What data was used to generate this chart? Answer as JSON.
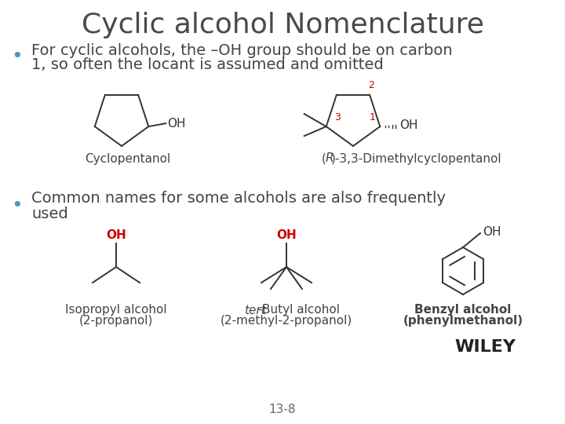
{
  "title": "Cyclic alcohol Nomenclature",
  "title_color": "#4a4a4a",
  "title_fontsize": 26,
  "background_color": "#ffffff",
  "bullet_color": "#4a9bb5",
  "bullet1_line1": "For cyclic alcohols, the –OH group should be on carbon",
  "bullet1_line2": "1, so often the locant is assumed and omitted",
  "bullet2_line1": "Common names for some alcohols are also frequently",
  "bullet2_line2": "used",
  "bullet_fontsize": 14,
  "label1": "Cyclopentanol",
  "label2_italic": "R",
  "label2_rest": ")-3,3-Dimethylcyclopentanol",
  "label3_line1": "Isopropyl alcohol",
  "label3_line2": "(2-propanol)",
  "label4_italic": "tert",
  "label4_rest": "-Butyl alcohol",
  "label4_line2": "(2-methyl-2-propanol)",
  "label5_line1": "Benzyl alcohol",
  "label5_line2": "(phenylmethanol)",
  "label_fontsize": 10,
  "number_color": "#cc0000",
  "oh_color_black": "#333333",
  "oh_color_red": "#cc0000",
  "wiley_text": "WILEY",
  "page_number": "13-8",
  "line_color": "#333333",
  "line_width": 1.4
}
